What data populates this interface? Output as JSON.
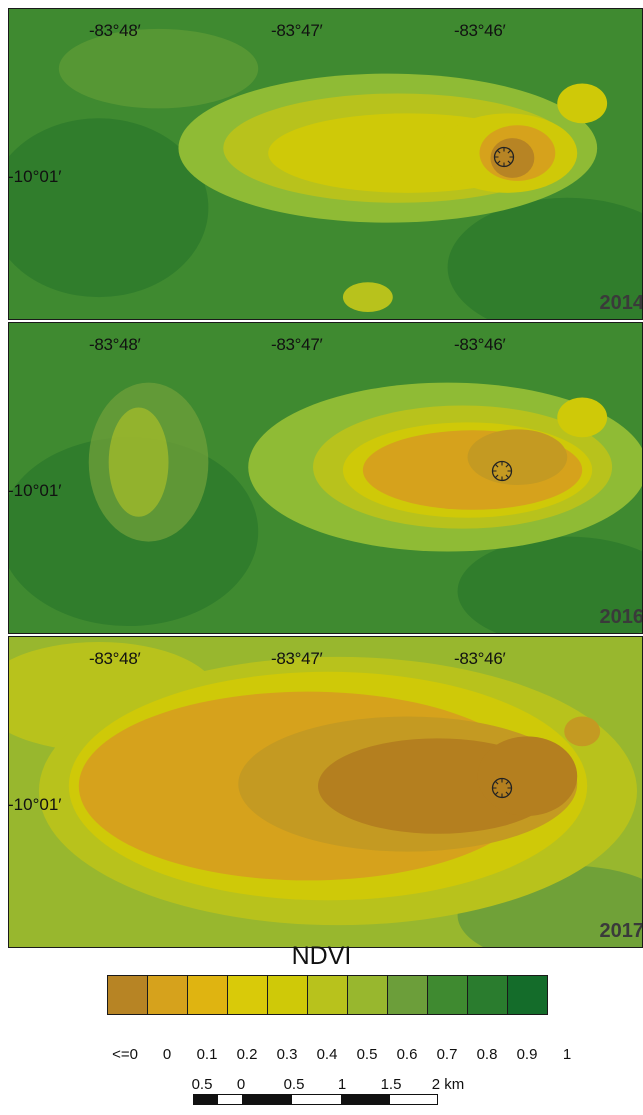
{
  "panels": [
    {
      "year": "2014",
      "lon_labels": [
        "-83°48′",
        "-83°47′",
        "-83°46′"
      ],
      "lat_label": "-10°01′"
    },
    {
      "year": "2016",
      "lon_labels": [
        "-83°48′",
        "-83°47′",
        "-83°46′"
      ],
      "lat_label": "-10°01′"
    },
    {
      "year": "2017",
      "lon_labels": [
        "-83°48′",
        "-83°47′",
        "-83°46′"
      ],
      "lat_label": "-10°01′"
    }
  ],
  "legend": {
    "title": "NDVI",
    "colors": [
      "#b78424",
      "#d6a21c",
      "#dfb411",
      "#d9ca09",
      "#cfc908",
      "#b8c21c",
      "#98b72e",
      "#6c9e3a",
      "#3f8a30",
      "#2a7c2e",
      "#146c2a"
    ],
    "tick_labels": [
      "<=0",
      "0",
      "0.1",
      "0.2",
      "0.3",
      "0.4",
      "0.5",
      "0.6",
      "0.7",
      "0.8",
      "0.9",
      "1"
    ]
  },
  "scale_bar": {
    "labels": [
      "0.5",
      "0",
      "0.5",
      "1",
      "1.5",
      "2 km"
    ]
  },
  "colors": {
    "bg_green": "#3f8a30",
    "dark_green": "#246f2a",
    "light_green": "#8fbb35",
    "yellow": "#d8c80c",
    "ochre": "#c49a22",
    "brown": "#b47f1f"
  }
}
